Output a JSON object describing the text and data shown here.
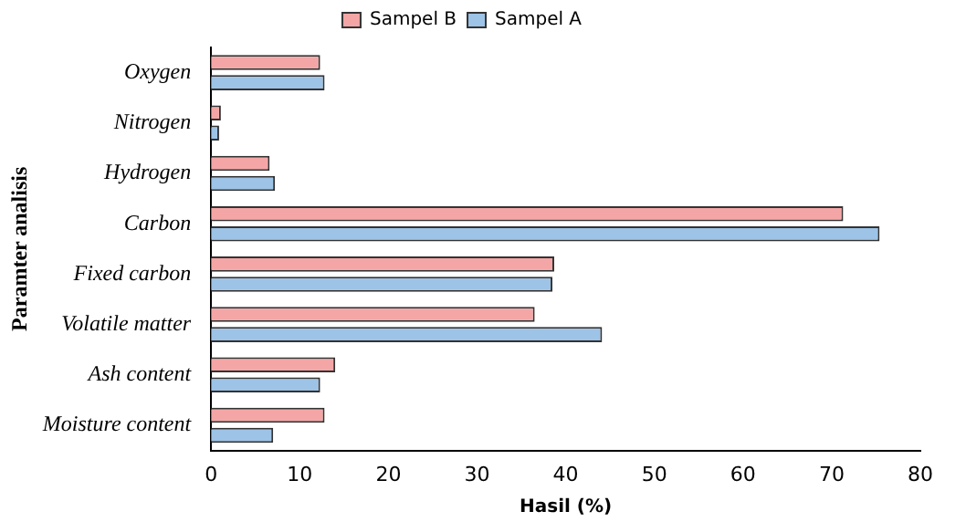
{
  "chart_data": {
    "type": "bar",
    "orientation": "horizontal",
    "xlabel": "Hasil (%)",
    "ylabel": "Paramter analisis",
    "categories": [
      "Oxygen",
      "Nitrogen",
      "Hydrogen",
      "Carbon",
      "Fixed carbon",
      "Volatile matter",
      "Ash content",
      "Moisture content"
    ],
    "series": [
      {
        "name": "Sampel B",
        "color": "#f4a6a6",
        "values": [
          12.3,
          1.1,
          6.6,
          71.3,
          38.7,
          36.5,
          14.0,
          12.8
        ]
      },
      {
        "name": "Sampel A",
        "color": "#9dc3e6",
        "values": [
          12.8,
          0.9,
          7.2,
          75.4,
          38.5,
          44.1,
          12.3,
          7.0
        ]
      }
    ],
    "xlim": [
      0,
      80
    ],
    "xticks": [
      0,
      10,
      20,
      30,
      40,
      50,
      60,
      70,
      80
    ],
    "grid": false,
    "legend": "top"
  }
}
